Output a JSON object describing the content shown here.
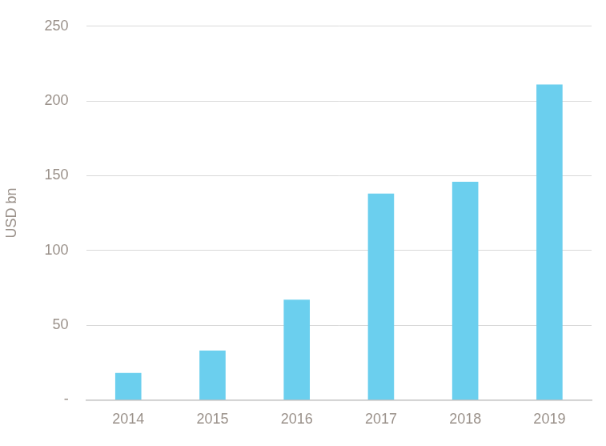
{
  "chart_data": {
    "type": "bar",
    "y_label": "USD bn",
    "categories": [
      "2014",
      "2015",
      "2016",
      "2017",
      "2018",
      "2019"
    ],
    "values": [
      18,
      33,
      67,
      138,
      146,
      211
    ],
    "color": "#6bcfee",
    "ylim": [
      0,
      250
    ],
    "yticks": [
      {
        "value": 0,
        "label": "-"
      },
      50,
      100,
      150,
      200,
      250
    ],
    "grid": true
  }
}
